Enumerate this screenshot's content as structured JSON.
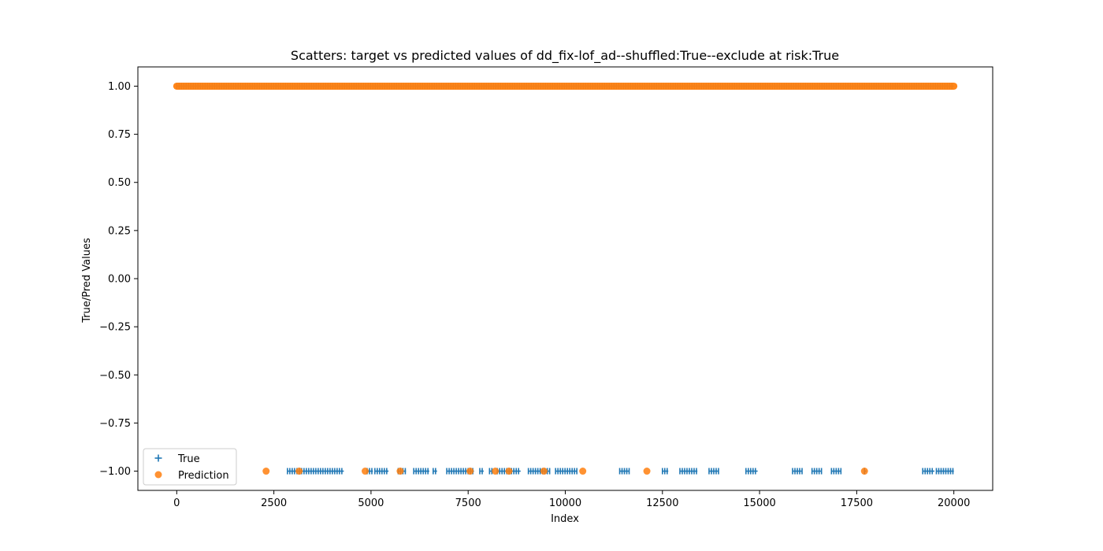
{
  "chart_data": {
    "type": "scatter",
    "title": "Scatters: target vs predicted values of dd_fix-lof_ad--shuffled:True--exclude at risk:True",
    "xlabel": "Index",
    "ylabel": "True/Pred Values",
    "xlim": [
      -1000,
      21000
    ],
    "ylim": [
      -1.1,
      1.1
    ],
    "x_ticks": [
      0,
      2500,
      5000,
      7500,
      10000,
      12500,
      15000,
      17500,
      20000
    ],
    "x_tick_labels": [
      "0",
      "2500",
      "5000",
      "7500",
      "10000",
      "12500",
      "15000",
      "17500",
      "20000"
    ],
    "y_ticks": [
      1.0,
      0.75,
      0.5,
      0.25,
      0.0,
      -0.25,
      -0.5,
      -0.75,
      -1.0
    ],
    "y_tick_labels": [
      "1.00",
      "0.75",
      "0.50",
      "0.25",
      "0.00",
      "−0.25",
      "−0.50",
      "−0.75",
      "−1.00"
    ],
    "legend_position": "lower-left",
    "grid": false,
    "series": [
      {
        "name": "True",
        "marker": "plus",
        "color": "#1f77b4",
        "dense_ranges": [
          {
            "x_start": 0,
            "x_end": 20000,
            "y": 1.0
          },
          {
            "x_start": 2850,
            "x_end": 4300,
            "y": -1.0
          },
          {
            "x_start": 4900,
            "x_end": 5050,
            "y": -1.0
          },
          {
            "x_start": 5100,
            "x_end": 5450,
            "y": -1.0
          },
          {
            "x_start": 5700,
            "x_end": 5900,
            "y": -1.0
          },
          {
            "x_start": 6100,
            "x_end": 6500,
            "y": -1.0
          },
          {
            "x_start": 6600,
            "x_end": 6700,
            "y": -1.0
          },
          {
            "x_start": 6950,
            "x_end": 7650,
            "y": -1.0
          },
          {
            "x_start": 7800,
            "x_end": 7900,
            "y": -1.0
          },
          {
            "x_start": 8050,
            "x_end": 8150,
            "y": -1.0
          },
          {
            "x_start": 8250,
            "x_end": 8850,
            "y": -1.0
          },
          {
            "x_start": 9050,
            "x_end": 9600,
            "y": -1.0
          },
          {
            "x_start": 9750,
            "x_end": 10300,
            "y": -1.0
          },
          {
            "x_start": 11400,
            "x_end": 11650,
            "y": -1.0
          },
          {
            "x_start": 12500,
            "x_end": 12650,
            "y": -1.0
          },
          {
            "x_start": 12950,
            "x_end": 13400,
            "y": -1.0
          },
          {
            "x_start": 13700,
            "x_end": 13950,
            "y": -1.0
          },
          {
            "x_start": 14650,
            "x_end": 14950,
            "y": -1.0
          },
          {
            "x_start": 15850,
            "x_end": 16100,
            "y": -1.0
          },
          {
            "x_start": 16350,
            "x_end": 16600,
            "y": -1.0
          },
          {
            "x_start": 16850,
            "x_end": 17100,
            "y": -1.0
          },
          {
            "x_start": 17700,
            "x_end": 17750,
            "y": -1.0
          },
          {
            "x_start": 19200,
            "x_end": 19500,
            "y": -1.0
          },
          {
            "x_start": 19550,
            "x_end": 20000,
            "y": -1.0
          }
        ]
      },
      {
        "name": "Prediction",
        "marker": "circle",
        "color": "#ff7f0e",
        "dense_ranges": [
          {
            "x_start": 0,
            "x_end": 20000,
            "y": 1.0
          }
        ],
        "points": [
          {
            "x": 2300,
            "y": -1.0
          },
          {
            "x": 3150,
            "y": -1.0
          },
          {
            "x": 4850,
            "y": -1.0
          },
          {
            "x": 5750,
            "y": -1.0
          },
          {
            "x": 7550,
            "y": -1.0
          },
          {
            "x": 8200,
            "y": -1.0
          },
          {
            "x": 8550,
            "y": -1.0
          },
          {
            "x": 9450,
            "y": -1.0
          },
          {
            "x": 10450,
            "y": -1.0
          },
          {
            "x": 12100,
            "y": -1.0
          },
          {
            "x": 17700,
            "y": -1.0
          }
        ]
      }
    ]
  }
}
